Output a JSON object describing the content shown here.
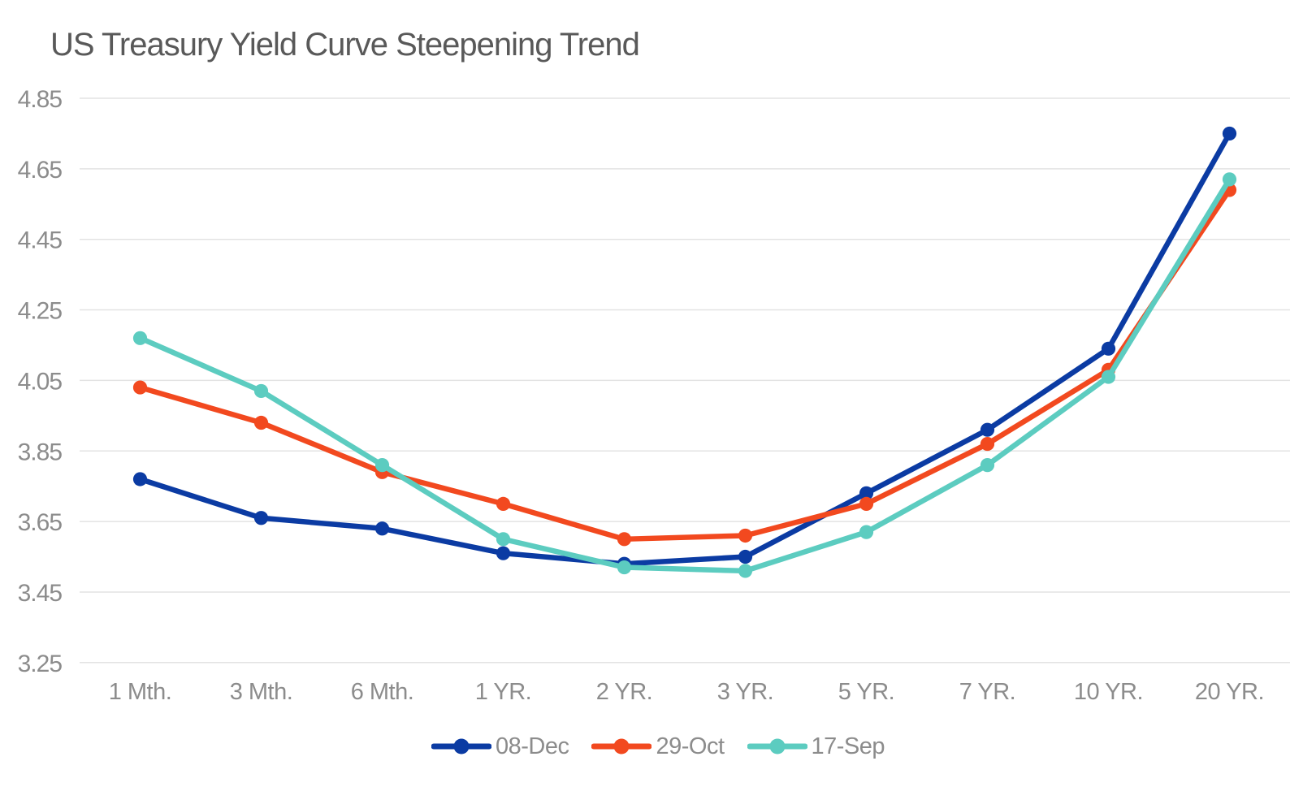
{
  "chart_data": {
    "type": "line",
    "title": "US Treasury Yield Curve Steepening Trend",
    "xlabel": "",
    "ylabel": "",
    "categories": [
      "1 Mth.",
      "3 Mth.",
      "6 Mth.",
      "1 YR.",
      "2 YR.",
      "3 YR.",
      "5 YR.",
      "7 YR.",
      "10 YR.",
      "20 YR."
    ],
    "series": [
      {
        "name": "08-Dec",
        "color": "#0b3ba3",
        "values": [
          3.77,
          3.66,
          3.63,
          3.56,
          3.53,
          3.55,
          3.73,
          3.91,
          4.14,
          4.75
        ]
      },
      {
        "name": "29-Oct",
        "color": "#f2491f",
        "values": [
          4.03,
          3.93,
          3.79,
          3.7,
          3.6,
          3.61,
          3.7,
          3.87,
          4.08,
          4.59
        ]
      },
      {
        "name": "17-Sep",
        "color": "#5cccc0",
        "values": [
          4.17,
          4.02,
          3.81,
          3.6,
          3.52,
          3.51,
          3.62,
          3.81,
          4.06,
          4.62
        ]
      }
    ],
    "ylim": [
      3.25,
      4.85
    ],
    "y_ticks": [
      4.85,
      4.65,
      4.45,
      4.25,
      4.05,
      3.85,
      3.65,
      3.45,
      3.25
    ],
    "grid": "horizontal",
    "legend_position": "bottom"
  },
  "colors": {
    "background": "#ffffff",
    "title_text": "#595959",
    "axis_label_text": "#8c8c8c",
    "gridline": "#e3e3e3"
  }
}
